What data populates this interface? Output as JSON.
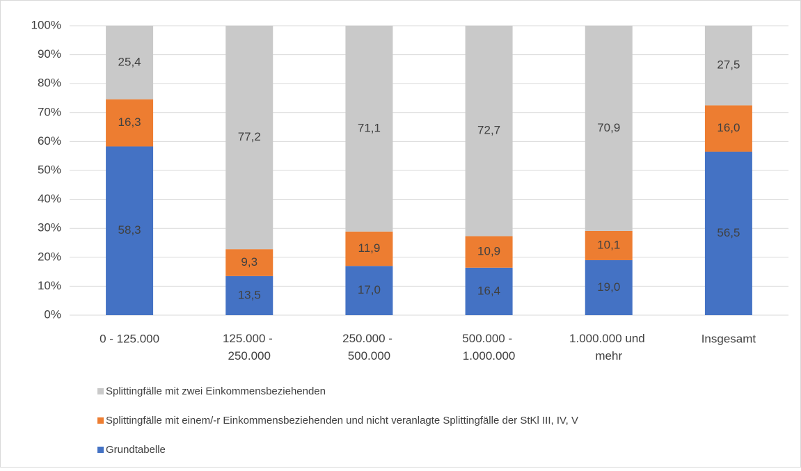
{
  "chart_data": {
    "type": "bar",
    "stacked": true,
    "categories": [
      "0 - 125.000",
      "125.000 - 250.000",
      "250.000 - 500.000",
      "500.000 - 1.000.000",
      "1.000.000 und mehr",
      "Insgesamt"
    ],
    "series": [
      {
        "name": "Grundtabelle",
        "color": "#4472c4",
        "values": [
          58.3,
          13.5,
          17.0,
          16.4,
          19.0,
          56.5
        ],
        "value_labels": [
          "58,3",
          "13,5",
          "17,0",
          "16,4",
          "19,0",
          "56,5"
        ]
      },
      {
        "name": "Splittingfälle mit einem/-r Einkommensbeziehenden und nicht veranlagte Splittingfälle der StKl III, IV, V",
        "color": "#ed7d31",
        "values": [
          16.3,
          9.3,
          11.9,
          10.9,
          10.1,
          16.0
        ],
        "value_labels": [
          "16,3",
          "9,3",
          "11,9",
          "10,9",
          "10,1",
          "16,0"
        ]
      },
      {
        "name": "Splittingfälle mit zwei Einkommensbeziehenden",
        "color": "#c9c9c9",
        "values": [
          25.4,
          77.2,
          71.1,
          72.7,
          70.9,
          27.5
        ],
        "value_labels": [
          "25,4",
          "77,2",
          "71,1",
          "72,7",
          "70,9",
          "27,5"
        ]
      }
    ],
    "ylim": [
      0,
      100
    ],
    "yticks": [
      {
        "value": 0,
        "label": "0%"
      },
      {
        "value": 10,
        "label": "10%"
      },
      {
        "value": 20,
        "label": "20%"
      },
      {
        "value": 30,
        "label": "30%"
      },
      {
        "value": 40,
        "label": "40%"
      },
      {
        "value": 50,
        "label": "50%"
      },
      {
        "value": 60,
        "label": "60%"
      },
      {
        "value": 70,
        "label": "70%"
      },
      {
        "value": 80,
        "label": "80%"
      },
      {
        "value": 90,
        "label": "90%"
      },
      {
        "value": 100,
        "label": "100%"
      }
    ],
    "grid": true,
    "legend": "bottom"
  }
}
